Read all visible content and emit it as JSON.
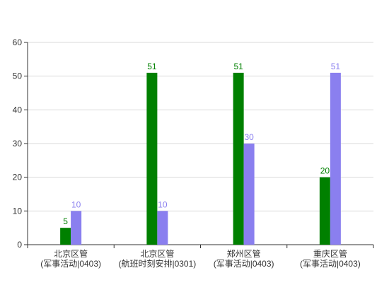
{
  "chart_data": {
    "type": "bar",
    "categories": [
      [
        "北京区管",
        "(军事活动|0403)"
      ],
      [
        "北京区管",
        "(航班时刻安排|0301)"
      ],
      [
        "郑州区管",
        "(军事活动|0403)"
      ],
      [
        "重庆区管",
        "(军事活动|0403)"
      ]
    ],
    "series": [
      {
        "values": [
          5,
          51,
          51,
          20
        ],
        "color": "#008000"
      },
      {
        "values": [
          10,
          10,
          30,
          51
        ],
        "color": "#8a7fef"
      }
    ],
    "ylim": [
      0,
      60
    ],
    "yticks": [
      0,
      10,
      20,
      30,
      40,
      50,
      60
    ],
    "grid": true,
    "legend": "none",
    "data_labels": true,
    "axis_color": "#333333",
    "grid_color": "#d9d9d9"
  }
}
